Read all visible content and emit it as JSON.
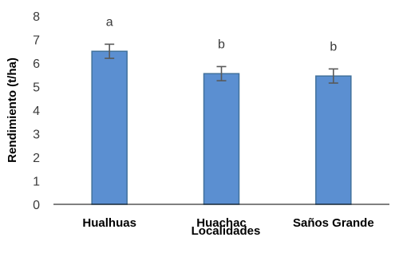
{
  "chart_data": {
    "type": "bar",
    "categories": [
      "Hualhuas",
      "Huachac",
      "Saños Grande"
    ],
    "values": [
      6.5,
      5.55,
      5.45
    ],
    "error": [
      0.3,
      0.3,
      0.3
    ],
    "significance": [
      "a",
      "b",
      "b"
    ],
    "xlabel": "Localidades",
    "ylabel": "Rendimiento (t/ha)",
    "ylim": [
      0,
      8
    ],
    "yticks": [
      "0",
      "1",
      "2",
      "3",
      "4",
      "5",
      "6",
      "7",
      "8"
    ],
    "grid": false,
    "legend": "none",
    "colors": {
      "bar_fill": "#5b8fd1",
      "bar_stroke": "#41719c",
      "error_bar": "#595959",
      "axis": "#000000"
    }
  }
}
